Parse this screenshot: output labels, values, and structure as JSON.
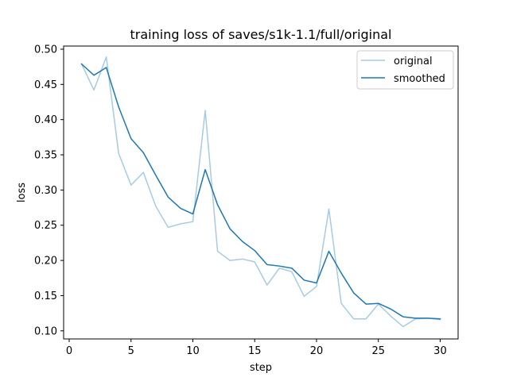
{
  "chart_data": {
    "type": "line",
    "title": "training loss of saves/s1k-1.1/full/original",
    "xlabel": "step",
    "ylabel": "loss",
    "xlim": [
      -0.45,
      31.45
    ],
    "ylim": [
      0.0885,
      0.5045
    ],
    "xticks": [
      0,
      5,
      10,
      15,
      20,
      25,
      30
    ],
    "yticks": [
      0.1,
      0.15,
      0.2,
      0.25,
      0.3,
      0.35,
      0.4,
      0.45,
      0.5
    ],
    "ytick_labels": [
      "0.10",
      "0.15",
      "0.20",
      "0.25",
      "0.30",
      "0.35",
      "0.40",
      "0.45",
      "0.50"
    ],
    "grid": false,
    "legend_position": "top-right",
    "x": [
      1,
      2,
      3,
      4,
      5,
      6,
      7,
      8,
      9,
      10,
      11,
      12,
      13,
      14,
      15,
      16,
      17,
      18,
      19,
      20,
      21,
      22,
      23,
      24,
      25,
      26,
      27,
      28,
      29,
      30
    ],
    "series": [
      {
        "name": "original",
        "color": "#a6cbe3",
        "values": [
          0.479,
          0.442,
          0.489,
          0.352,
          0.307,
          0.325,
          0.277,
          0.247,
          0.252,
          0.255,
          0.413,
          0.213,
          0.2,
          0.202,
          0.198,
          0.165,
          0.189,
          0.184,
          0.149,
          0.163,
          0.273,
          0.139,
          0.117,
          0.117,
          0.138,
          0.121,
          0.106,
          0.117,
          0.118,
          0.116
        ]
      },
      {
        "name": "smoothed",
        "color": "#1f77b4",
        "values": [
          0.479,
          0.463,
          0.474,
          0.418,
          0.373,
          0.353,
          0.321,
          0.29,
          0.274,
          0.266,
          0.329,
          0.279,
          0.245,
          0.227,
          0.214,
          0.194,
          0.192,
          0.189,
          0.172,
          0.168,
          0.213,
          0.182,
          0.154,
          0.138,
          0.139,
          0.131,
          0.12,
          0.118,
          0.118,
          0.117
        ]
      }
    ]
  }
}
